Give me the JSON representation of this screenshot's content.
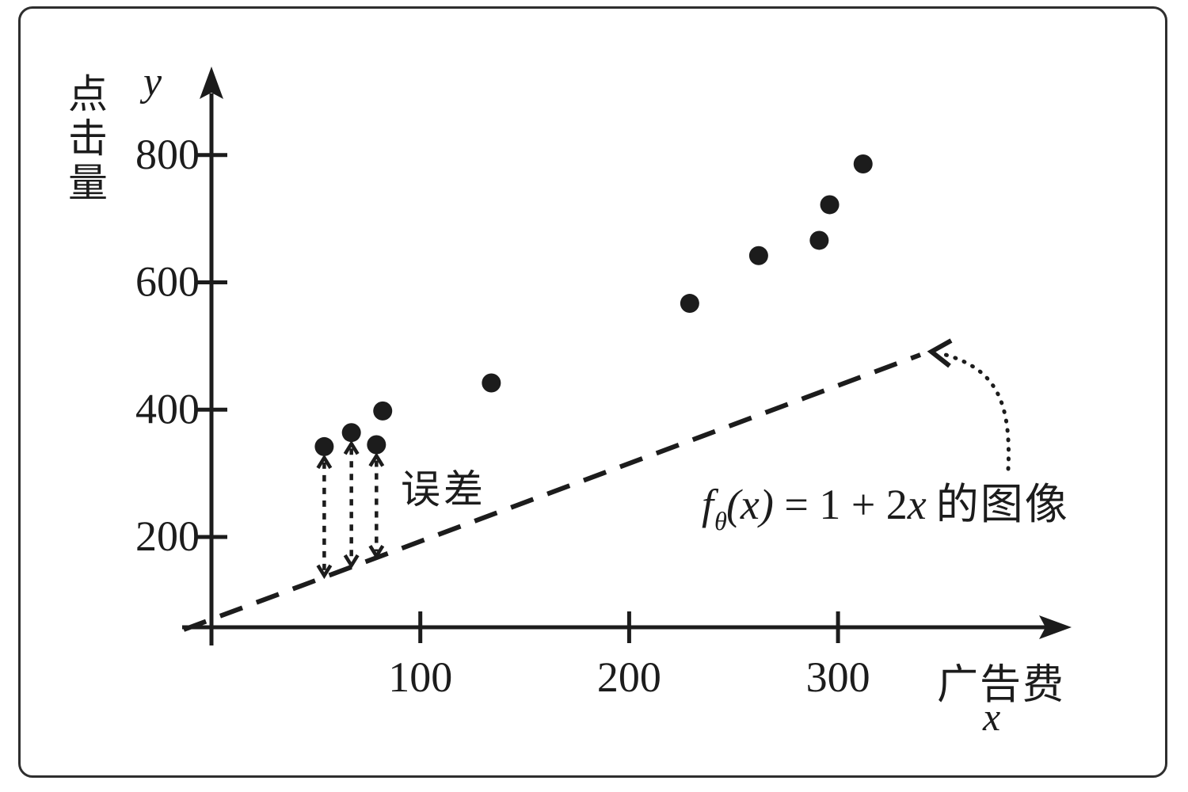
{
  "chart_data": {
    "type": "scatter",
    "title": "",
    "x_axis": {
      "label": "广告费",
      "variable": "x",
      "ticks": [
        100,
        200,
        300
      ],
      "range": [
        0,
        350
      ],
      "grid": false
    },
    "y_axis": {
      "label": "点击量",
      "variable": "y",
      "ticks": [
        200,
        400,
        600,
        800
      ],
      "range": [
        0,
        900
      ],
      "grid": false
    },
    "points": [
      [
        54,
        342
      ],
      [
        67,
        364
      ],
      [
        79,
        345
      ],
      [
        82,
        398
      ],
      [
        134,
        442
      ],
      [
        229,
        567
      ],
      [
        262,
        642
      ],
      [
        291,
        666
      ],
      [
        296,
        722
      ],
      [
        312,
        786
      ]
    ],
    "fit_line": {
      "style": "dashed",
      "slope": 2,
      "intercept": 1,
      "formula": {
        "f": "f",
        "sub": "θ",
        "args": "(x)",
        "equals": " = 1 + 2",
        "x_term": "x",
        "suffix": "的图像"
      }
    },
    "error_annotation": {
      "label": "误差",
      "point_indices": [
        0,
        1,
        2
      ]
    },
    "legend": null,
    "colors": {
      "ink": "#1c1c1c",
      "frame": "#2e2e2e",
      "background": "#ffffff"
    }
  }
}
